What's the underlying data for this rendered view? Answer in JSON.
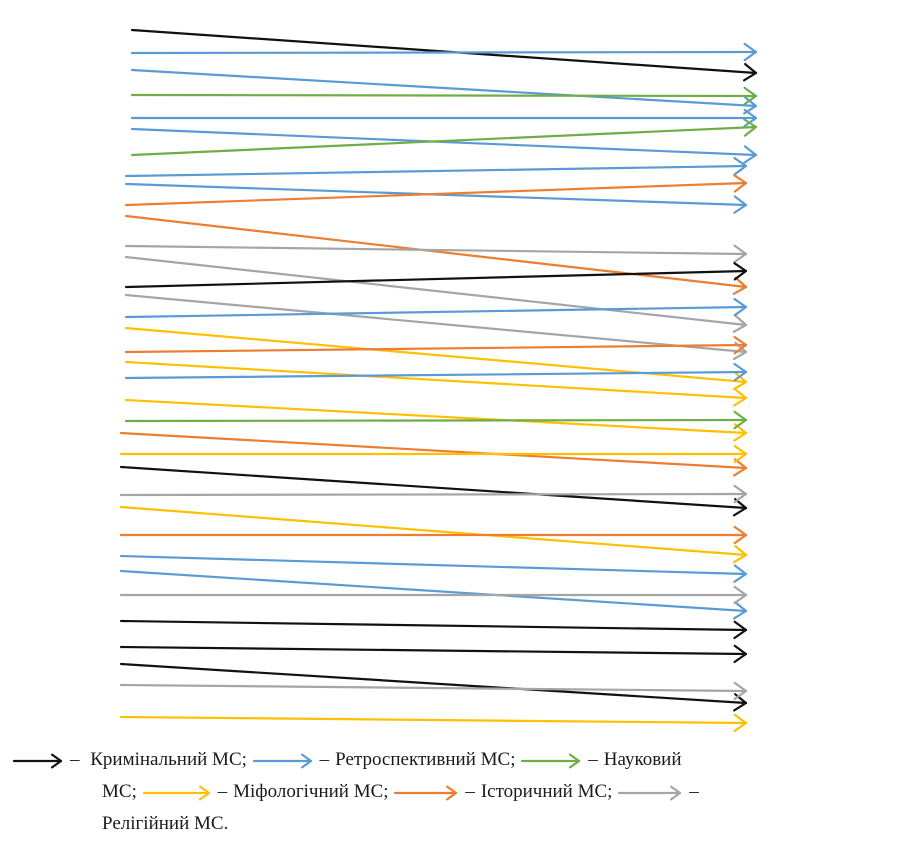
{
  "colors": {
    "criminal": "#111111",
    "retrospective": "#5b9bd5",
    "scientific": "#70ad47",
    "mythological": "#ffc000",
    "historical": "#ed7d31",
    "religious": "#a5a5a5"
  },
  "arrows": [
    {
      "type": "criminal",
      "from": 1,
      "to": 2
    },
    {
      "type": "retrospective",
      "from": 2,
      "to": 1
    },
    {
      "type": "retrospective",
      "from": 3,
      "to": 4
    },
    {
      "type": "scientific",
      "from": 4,
      "to": 3
    },
    {
      "type": "retrospective",
      "from": 5,
      "to": 5
    },
    {
      "type": "retrospective",
      "from": 6,
      "to": 7
    },
    {
      "type": "scientific",
      "from": 7,
      "to": 6
    },
    {
      "type": "retrospective",
      "from": 8,
      "to": 8
    },
    {
      "type": "retrospective",
      "from": 9,
      "to": 10
    },
    {
      "type": "historical",
      "from": 10,
      "to": 9
    },
    {
      "type": "historical",
      "from": 11,
      "to": 14
    },
    {
      "type": "religious",
      "from": 12,
      "to": 12
    },
    {
      "type": "religious",
      "from": 13,
      "to": 16
    },
    {
      "type": "criminal",
      "from": 14,
      "to": 13
    },
    {
      "type": "religious",
      "from": 15,
      "to": 18
    },
    {
      "type": "retrospective",
      "from": 16,
      "to": 15
    },
    {
      "type": "mythological",
      "from": 17,
      "to": 20
    },
    {
      "type": "historical",
      "from": 18,
      "to": 17
    },
    {
      "type": "mythological",
      "from": 19,
      "to": 21
    },
    {
      "type": "retrospective",
      "from": 20,
      "to": 19
    },
    {
      "type": "mythological",
      "from": 21,
      "to": 23
    },
    {
      "type": "scientific",
      "from": 22,
      "to": 22
    },
    {
      "type": "historical",
      "from": 23,
      "to": 25
    },
    {
      "type": "mythological",
      "from": 24,
      "to": 24
    },
    {
      "type": "criminal",
      "from": 25,
      "to": 27
    },
    {
      "type": "religious",
      "from": 26,
      "to": 26
    },
    {
      "type": "mythological",
      "from": 27,
      "to": 29
    },
    {
      "type": "historical",
      "from": 28,
      "to": 28
    },
    {
      "type": "retrospective",
      "from": 29,
      "to": 30
    },
    {
      "type": "retrospective",
      "from": 30,
      "to": 32
    },
    {
      "type": "religious",
      "from": 31,
      "to": 31
    },
    {
      "type": "criminal",
      "from": 32,
      "to": 33
    },
    {
      "type": "criminal",
      "from": 33,
      "to": 34
    },
    {
      "type": "criminal",
      "from": 34,
      "to": 36
    },
    {
      "type": "religious",
      "from": 35,
      "to": 35
    },
    {
      "type": "mythological",
      "from": 36,
      "to": 37
    }
  ],
  "legend": {
    "dash": "–",
    "criminal": "Кримінальний МС;",
    "retrospective": "Ретроспективний МС;",
    "scientific_line1": "Науковий",
    "scientific_line2": "МС;",
    "mythological": "Міфологічний МС;",
    "historical": "Історичний МС;",
    "religious_line2": "Релігійний МС."
  }
}
